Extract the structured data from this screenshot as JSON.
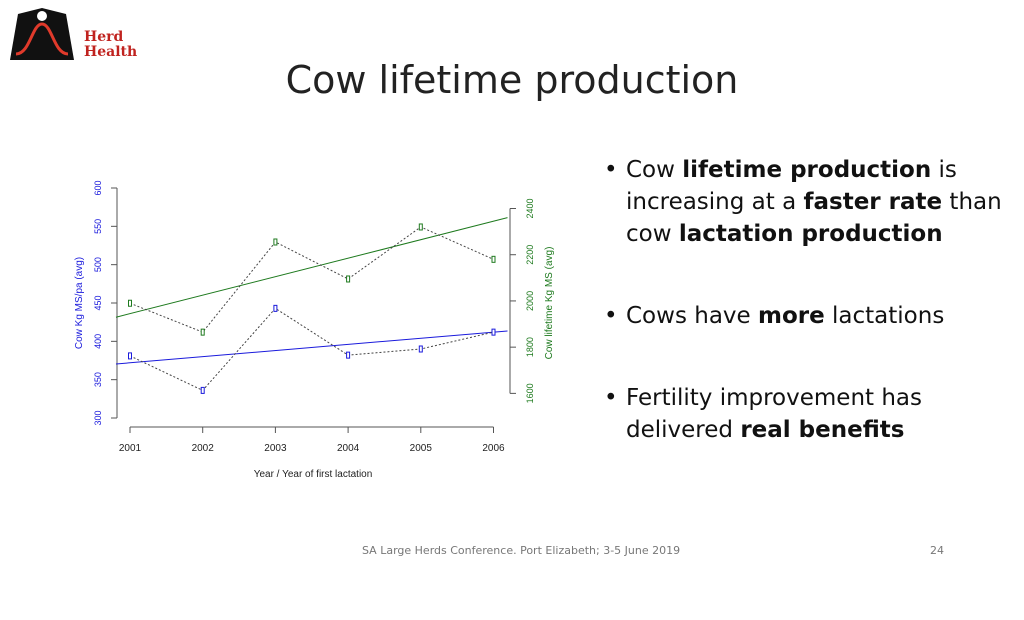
{
  "logo": {
    "line1": "Herd",
    "line2": "Health",
    "icon": "bell-curve-icon",
    "brand_color": "#c0231f"
  },
  "title": "Cow lifetime production",
  "bullets": [
    {
      "parts": [
        {
          "t": "Cow ",
          "b": false
        },
        {
          "t": "lifetime production",
          "b": true
        },
        {
          "t": " is increasing at a ",
          "b": false
        },
        {
          "t": "faster rate",
          "b": true
        },
        {
          "t": " than cow ",
          "b": false
        },
        {
          "t": "lactation production",
          "b": true
        }
      ]
    },
    {
      "parts": [
        {
          "t": "Cows have ",
          "b": false
        },
        {
          "t": "more",
          "b": true
        },
        {
          "t": " lactations",
          "b": false
        }
      ]
    },
    {
      "parts": [
        {
          "t": "Fertility improvement has delivered ",
          "b": false
        },
        {
          "t": "real benefits",
          "b": true
        }
      ]
    }
  ],
  "footer": {
    "conference": "SA Large Herds Conference.  Port Elizabeth; 3-5 June 2019",
    "page": "24"
  },
  "chart_data": {
    "type": "line",
    "categories": [
      "2001",
      "2002",
      "2003",
      "2004",
      "2005",
      "2006"
    ],
    "xlabel": "Year / Year of first lactation",
    "series": [
      {
        "name": "Cow Kg MS/pa (avg)",
        "axis": "left",
        "color": "#1a1adc",
        "values": [
          381,
          336,
          443,
          382,
          390,
          412
        ],
        "trend": [
          372,
          380,
          388,
          396,
          404,
          412
        ]
      },
      {
        "name": "Cow lifetime Kg MS (avg)",
        "axis": "right",
        "color": "#1e7a1e",
        "values": [
          1990,
          1865,
          2255,
          2095,
          2320,
          2180
        ],
        "trend": [
          1945,
          2025,
          2105,
          2185,
          2265,
          2345
        ]
      }
    ],
    "left_axis": {
      "label": "Cow Kg MS/pa (avg)",
      "ticks": [
        300,
        350,
        400,
        450,
        500,
        550,
        600
      ],
      "range": [
        300,
        600
      ]
    },
    "right_axis": {
      "label": "Cow lifetime Kg MS (avg)",
      "ticks": [
        1600,
        1800,
        2000,
        2200,
        2400
      ],
      "range": [
        1580,
        2480
      ]
    }
  }
}
